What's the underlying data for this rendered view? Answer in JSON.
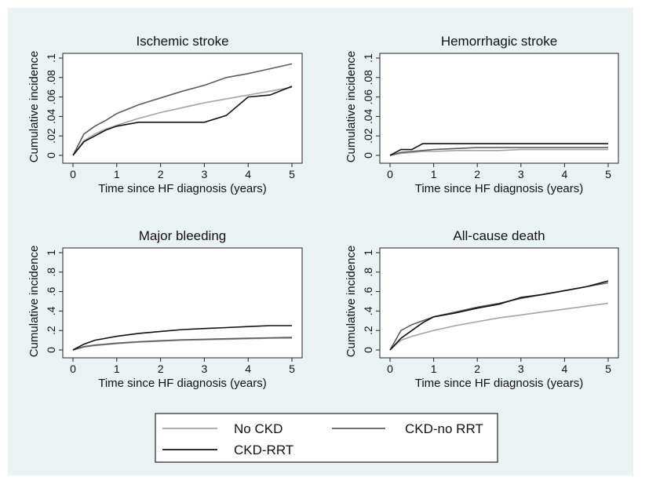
{
  "chart_data": [
    {
      "type": "line",
      "title": "Ischemic stroke",
      "xlabel": "Time since HF diagnosis (years)",
      "ylabel": "Cumulative incidence",
      "x": [
        0,
        0.25,
        0.5,
        0.75,
        1,
        1.5,
        2,
        2.5,
        3,
        3.5,
        4,
        4.5,
        5
      ],
      "series": [
        {
          "name": "No CKD",
          "color": "#a3a3a3",
          "values": [
            0,
            0.015,
            0.022,
            0.027,
            0.031,
            0.038,
            0.044,
            0.049,
            0.054,
            0.058,
            0.062,
            0.066,
            0.07
          ]
        },
        {
          "name": "CKD-no RRT",
          "color": "#5c5c5c",
          "values": [
            0,
            0.022,
            0.03,
            0.036,
            0.043,
            0.052,
            0.059,
            0.066,
            0.072,
            0.08,
            0.084,
            0.089,
            0.094
          ]
        },
        {
          "name": "CKD-RRT",
          "color": "#111111",
          "values": [
            0,
            0.014,
            0.02,
            0.026,
            0.03,
            0.034,
            0.034,
            0.034,
            0.034,
            0.041,
            0.06,
            0.062,
            0.071
          ]
        }
      ],
      "xlim": [
        0,
        5
      ],
      "xticks": [
        0,
        1,
        2,
        3,
        4,
        5
      ],
      "ylim": [
        0,
        0.1
      ],
      "yticks": [
        0,
        {
          "value": 0.02,
          "label": ".02"
        },
        {
          "value": 0.04,
          "label": ".04"
        },
        {
          "value": 0.06,
          "label": ".06"
        },
        {
          "value": 0.08,
          "label": ".08"
        },
        {
          "value": 0.1,
          "label": ".1"
        }
      ]
    },
    {
      "type": "line",
      "title": "Hemorrhagic stroke",
      "xlabel": "Time since HF diagnosis (years)",
      "ylabel": "Cumulative incidence",
      "x": [
        0,
        0.25,
        0.5,
        0.75,
        1,
        1.5,
        2,
        2.5,
        3,
        3.5,
        4,
        4.5,
        5
      ],
      "series": [
        {
          "name": "No CKD",
          "color": "#a3a3a3",
          "values": [
            0,
            0.002,
            0.003,
            0.004,
            0.004,
            0.005,
            0.005,
            0.005,
            0.006,
            0.006,
            0.006,
            0.006,
            0.006
          ]
        },
        {
          "name": "CKD-no RRT",
          "color": "#5c5c5c",
          "values": [
            0,
            0.003,
            0.004,
            0.005,
            0.006,
            0.007,
            0.008,
            0.008,
            0.008,
            0.008,
            0.008,
            0.008,
            0.008
          ]
        },
        {
          "name": "CKD-RRT",
          "color": "#111111",
          "values": [
            0,
            0.006,
            0.006,
            0.012,
            0.012,
            0.012,
            0.012,
            0.012,
            0.012,
            0.012,
            0.012,
            0.012,
            0.012
          ]
        }
      ],
      "xlim": [
        0,
        5
      ],
      "xticks": [
        0,
        1,
        2,
        3,
        4,
        5
      ],
      "ylim": [
        0,
        0.1
      ],
      "yticks": [
        0,
        {
          "value": 0.02,
          "label": ".02"
        },
        {
          "value": 0.04,
          "label": ".04"
        },
        {
          "value": 0.06,
          "label": ".06"
        },
        {
          "value": 0.08,
          "label": ".08"
        },
        {
          "value": 0.1,
          "label": ".1"
        }
      ]
    },
    {
      "type": "line",
      "title": "Major bleeding",
      "xlabel": "Time since HF diagnosis (years)",
      "ylabel": "Cumulative incidence",
      "x": [
        0,
        0.25,
        0.5,
        0.75,
        1,
        1.5,
        2,
        2.5,
        3,
        3.5,
        4,
        4.5,
        5
      ],
      "series": [
        {
          "name": "No CKD",
          "color": "#a3a3a3",
          "values": [
            0,
            0.03,
            0.045,
            0.055,
            0.065,
            0.08,
            0.09,
            0.1,
            0.105,
            0.11,
            0.115,
            0.12,
            0.12
          ]
        },
        {
          "name": "CKD-no RRT",
          "color": "#5c5c5c",
          "values": [
            0,
            0.035,
            0.05,
            0.06,
            0.07,
            0.085,
            0.095,
            0.105,
            0.11,
            0.115,
            0.12,
            0.125,
            0.13
          ]
        },
        {
          "name": "CKD-RRT",
          "color": "#111111",
          "values": [
            0,
            0.06,
            0.1,
            0.12,
            0.14,
            0.17,
            0.19,
            0.21,
            0.22,
            0.23,
            0.24,
            0.25,
            0.25
          ]
        }
      ],
      "xlim": [
        0,
        5
      ],
      "xticks": [
        0,
        1,
        2,
        3,
        4,
        5
      ],
      "ylim": [
        0,
        1
      ],
      "yticks": [
        0,
        {
          "value": 0.2,
          "label": ".2"
        },
        {
          "value": 0.4,
          "label": ".4"
        },
        {
          "value": 0.6,
          "label": ".6"
        },
        {
          "value": 0.8,
          "label": ".8"
        },
        1
      ]
    },
    {
      "type": "line",
      "title": "All-cause death",
      "xlabel": "Time since HF diagnosis (years)",
      "ylabel": "Cumulative incidence",
      "x": [
        0,
        0.25,
        0.5,
        0.75,
        1,
        1.5,
        2,
        2.5,
        3,
        3.5,
        4,
        4.5,
        5
      ],
      "series": [
        {
          "name": "No CKD",
          "color": "#a3a3a3",
          "values": [
            0,
            0.1,
            0.14,
            0.17,
            0.2,
            0.25,
            0.29,
            0.33,
            0.36,
            0.39,
            0.42,
            0.45,
            0.48
          ]
        },
        {
          "name": "CKD-no RRT",
          "color": "#5c5c5c",
          "values": [
            0,
            0.2,
            0.26,
            0.3,
            0.34,
            0.39,
            0.44,
            0.48,
            0.53,
            0.57,
            0.61,
            0.65,
            0.69
          ]
        },
        {
          "name": "CKD-RRT",
          "color": "#111111",
          "values": [
            0,
            0.12,
            0.2,
            0.28,
            0.34,
            0.38,
            0.43,
            0.47,
            0.54,
            0.57,
            0.61,
            0.65,
            0.71
          ]
        }
      ],
      "xlim": [
        0,
        5
      ],
      "xticks": [
        0,
        1,
        2,
        3,
        4,
        5
      ],
      "ylim": [
        0,
        1
      ],
      "yticks": [
        0,
        {
          "value": 0.2,
          "label": ".2"
        },
        {
          "value": 0.4,
          "label": ".4"
        },
        {
          "value": 0.6,
          "label": ".6"
        },
        {
          "value": 0.8,
          "label": ".8"
        },
        1
      ]
    }
  ]
}
